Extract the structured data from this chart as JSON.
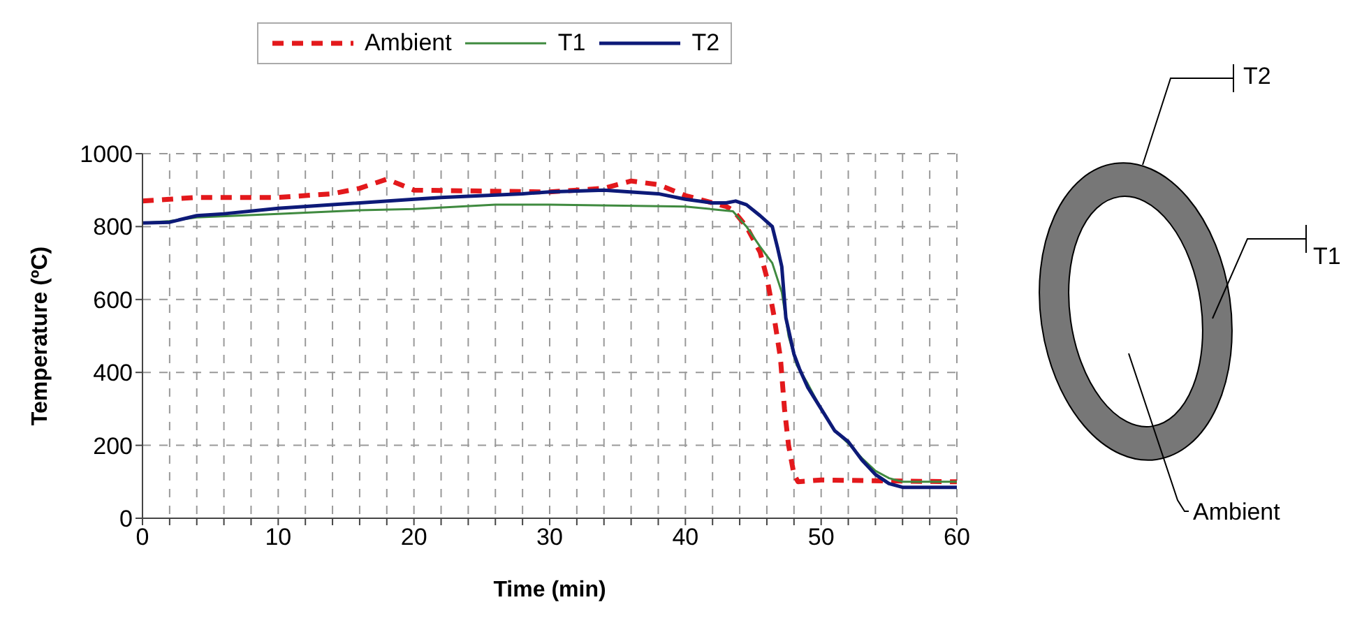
{
  "chart_data": {
    "type": "line",
    "xlabel": "Time (min)",
    "ylabel": "Temperature (ºC)",
    "xlim": [
      0,
      60
    ],
    "xticks": [
      0,
      {
        "value": 2,
        "label": null
      },
      {
        "value": 4,
        "label": null
      },
      {
        "value": 6,
        "label": null
      },
      {
        "value": 8,
        "label": null
      },
      10,
      {
        "value": 12,
        "label": null
      },
      {
        "value": 14,
        "label": null
      },
      {
        "value": 16,
        "label": null
      },
      {
        "value": 18,
        "label": null
      },
      20,
      {
        "value": 22,
        "label": null
      },
      {
        "value": 24,
        "label": null
      },
      {
        "value": 26,
        "label": null
      },
      {
        "value": 28,
        "label": null
      },
      30,
      {
        "value": 32,
        "label": null
      },
      {
        "value": 34,
        "label": null
      },
      {
        "value": 36,
        "label": null
      },
      {
        "value": 38,
        "label": null
      },
      40,
      {
        "value": 42,
        "label": null
      },
      {
        "value": 44,
        "label": null
      },
      {
        "value": 46,
        "label": null
      },
      {
        "value": 48,
        "label": null
      },
      50,
      {
        "value": 52,
        "label": null
      },
      {
        "value": 54,
        "label": null
      },
      {
        "value": 56,
        "label": null
      },
      {
        "value": 58,
        "label": null
      },
      60
    ],
    "ylim": [
      0,
      1000
    ],
    "yticks": [
      0,
      200,
      400,
      600,
      800,
      1000
    ],
    "grid": true,
    "legend": "top",
    "marker": "none",
    "series": [
      {
        "name": "Ambient",
        "color": "#e3191c",
        "line_style": "dashed",
        "x": [
          0,
          2,
          4,
          10,
          14,
          16,
          18,
          19,
          20,
          30,
          34,
          36,
          38,
          40,
          43,
          43.5,
          44.5,
          45.5,
          46,
          46.5,
          47,
          47.3,
          47.6,
          48,
          48.3,
          50,
          60
        ],
        "values": [
          870,
          875,
          880,
          880,
          890,
          905,
          930,
          915,
          900,
          895,
          905,
          925,
          915,
          885,
          855,
          845,
          800,
          730,
          660,
          560,
          440,
          300,
          200,
          120,
          100,
          105,
          100
        ]
      },
      {
        "name": "T1",
        "color": "#3f8a3f",
        "line_style": "solid",
        "x": [
          0,
          2,
          4,
          10,
          16,
          20,
          26,
          30,
          40,
          43.5,
          44.5,
          45.5,
          46.4,
          47.1,
          47.6,
          48.2,
          49,
          50,
          51,
          52,
          53,
          54,
          55,
          56,
          60
        ],
        "values": [
          810,
          815,
          825,
          835,
          845,
          848,
          860,
          860,
          855,
          842,
          800,
          745,
          700,
          620,
          500,
          420,
          370,
          300,
          240,
          205,
          165,
          130,
          110,
          100,
          100
        ]
      },
      {
        "name": "T2",
        "color": "#0d1a78",
        "line_style": "solid",
        "x": [
          0,
          2,
          4,
          6,
          10,
          14,
          20,
          22,
          28,
          30,
          34,
          38,
          40,
          42,
          43,
          43.7,
          44.5,
          45.5,
          46.4,
          46.8,
          47.1,
          47.4,
          48,
          48.4,
          49,
          50,
          51,
          52,
          53,
          54,
          55,
          56,
          60
        ],
        "values": [
          810,
          812,
          830,
          835,
          850,
          860,
          875,
          880,
          890,
          895,
          900,
          890,
          875,
          865,
          865,
          870,
          860,
          830,
          800,
          740,
          690,
          550,
          450,
          410,
          360,
          300,
          240,
          210,
          160,
          120,
          95,
          85,
          85
        ]
      }
    ],
    "annotations": [
      "T2",
      "T1",
      "Ambient"
    ]
  }
}
